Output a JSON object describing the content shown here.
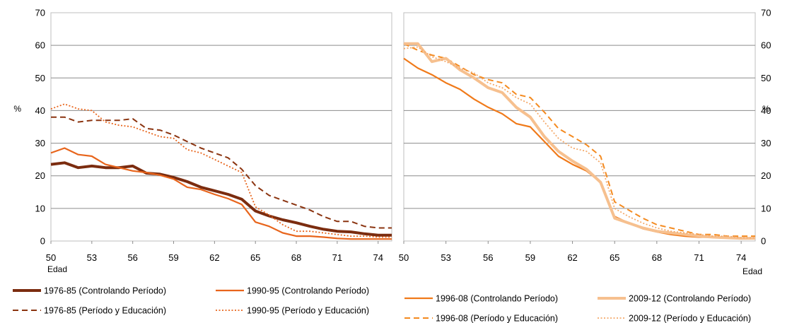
{
  "chart_data": [
    {
      "type": "line",
      "panel": "left",
      "xlabel": "Edad",
      "ylabel": "%",
      "xlim": [
        50,
        75
      ],
      "ylim": [
        0,
        70
      ],
      "x_ticks": [
        50,
        53,
        56,
        59,
        62,
        65,
        68,
        71,
        74
      ],
      "y_ticks": [
        0,
        10,
        20,
        30,
        40,
        50,
        60,
        70
      ],
      "grid": "horizontal",
      "x": [
        50,
        51,
        52,
        53,
        54,
        55,
        56,
        57,
        58,
        59,
        60,
        61,
        62,
        63,
        64,
        65,
        66,
        67,
        68,
        69,
        70,
        71,
        72,
        73,
        74,
        75
      ],
      "series": [
        {
          "name": "1976-85 (Controlando Período)",
          "color": "#7b2c0f",
          "style": "solid-thick",
          "values": [
            23.5,
            24,
            22.5,
            23,
            22.5,
            22.5,
            23,
            20.8,
            20.5,
            19.5,
            18.2,
            16.5,
            15.4,
            14.3,
            12.8,
            9.2,
            7.7,
            6.5,
            5.6,
            4.5,
            3.6,
            3,
            2.8,
            2.2,
            1.8,
            1.8
          ]
        },
        {
          "name": "1976-85 (Período y Educación)",
          "color": "#8b3410",
          "style": "dashed",
          "values": [
            38,
            38,
            36.5,
            37,
            37,
            37,
            37.5,
            34.5,
            34,
            32.5,
            30.5,
            28.5,
            27,
            25.5,
            22,
            17,
            14,
            12.5,
            11,
            9.5,
            7.5,
            6,
            6,
            4.5,
            4,
            4
          ]
        },
        {
          "name": "1990-95 (Controlando Período)",
          "color": "#e8651c",
          "style": "solid",
          "values": [
            27,
            28.5,
            26.5,
            26,
            23.5,
            22.5,
            21.5,
            21,
            20.2,
            19,
            16.5,
            15.8,
            14.3,
            13,
            11.2,
            5.8,
            4.5,
            2.5,
            1.5,
            1.5,
            1.2,
            0.8,
            0.6,
            0.6,
            0.6,
            0.6
          ]
        },
        {
          "name": "1990-95 (Período y Educación)",
          "color": "#e8651c",
          "style": "dotted",
          "values": [
            40.5,
            42,
            40.5,
            40,
            36.5,
            35.5,
            35,
            33.5,
            32,
            31.5,
            28,
            27,
            25,
            23,
            21,
            10.5,
            8,
            5,
            3,
            3,
            2.5,
            2,
            1.5,
            1.5,
            1.2,
            1.2
          ]
        }
      ]
    },
    {
      "type": "line",
      "panel": "right",
      "xlabel": "Edad",
      "ylabel": "%",
      "xlim": [
        50,
        75
      ],
      "ylim": [
        0,
        70
      ],
      "x_ticks": [
        50,
        53,
        56,
        59,
        62,
        65,
        68,
        71,
        74
      ],
      "y_ticks": [
        0,
        10,
        20,
        30,
        40,
        50,
        60,
        70
      ],
      "grid": "horizontal",
      "x": [
        50,
        51,
        52,
        53,
        54,
        55,
        56,
        57,
        58,
        59,
        60,
        61,
        62,
        63,
        64,
        65,
        66,
        67,
        68,
        69,
        70,
        71,
        72,
        73,
        74,
        75
      ],
      "series": [
        {
          "name": "1996-08 (Controlando Período)",
          "color": "#f07a1a",
          "style": "solid",
          "values": [
            56,
            53,
            51,
            48.5,
            46.5,
            43.5,
            41,
            39,
            36,
            35,
            30.5,
            26,
            23.5,
            21.5,
            18,
            7.5,
            5.5,
            3.8,
            2.8,
            2,
            1.5,
            1.2,
            1.2,
            1,
            0.8,
            0.8
          ]
        },
        {
          "name": "1996-08 (Período y Educación)",
          "color": "#f48a1f",
          "style": "dashed",
          "values": [
            60.5,
            58.5,
            57,
            56,
            53.5,
            51,
            49.5,
            48.5,
            45,
            44,
            39.5,
            34.5,
            32,
            29.5,
            26,
            12,
            9.5,
            7,
            5,
            4,
            3,
            2,
            2,
            1.5,
            1.5,
            1.5
          ]
        },
        {
          "name": "2009-12 (Controlando Período)",
          "color": "#f6c08f",
          "style": "solid-thick",
          "values": [
            60.5,
            60.5,
            55,
            56,
            52.5,
            50,
            47,
            45.5,
            41,
            38,
            32,
            27.5,
            24.5,
            22,
            18,
            7,
            5.5,
            4,
            3,
            2.5,
            2,
            1.5,
            1.2,
            1,
            0.8,
            0.8
          ]
        },
        {
          "name": "2009-12 (Período y Educación)",
          "color": "#f4a96a",
          "style": "dotted",
          "values": [
            59,
            59.5,
            56.5,
            55,
            53,
            51.5,
            48.5,
            47,
            44,
            42,
            36.5,
            31.5,
            28.5,
            27.5,
            24,
            10,
            7.5,
            5.5,
            4,
            3,
            2.5,
            2,
            1.5,
            1.5,
            1,
            1
          ]
        }
      ]
    }
  ]
}
